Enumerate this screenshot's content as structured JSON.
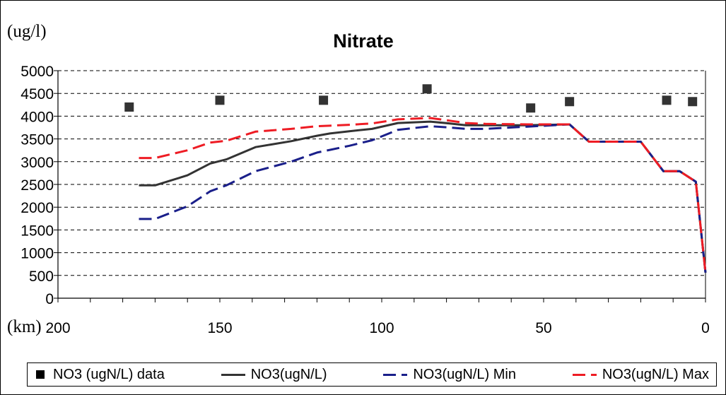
{
  "chart_data": {
    "type": "line",
    "title": "Nitrate",
    "ylabel": "(ug/l)",
    "xlabel": "(km)",
    "xlim": [
      200,
      0
    ],
    "ylim": [
      0,
      5000
    ],
    "x_ticks": [
      200,
      150,
      100,
      50,
      0
    ],
    "y_ticks": [
      0,
      500,
      1000,
      1500,
      2000,
      2500,
      3000,
      3500,
      4000,
      4500,
      5000
    ],
    "grid": "horizontal dashed",
    "legend_position": "bottom",
    "series": [
      {
        "name": "NO3 (ugN/L) data",
        "kind": "scatter",
        "color": "#333333",
        "x": [
          178,
          150,
          118,
          86,
          54,
          42,
          12,
          4
        ],
        "y": [
          4200,
          4350,
          4350,
          4600,
          4180,
          4320,
          4350,
          4320
        ]
      },
      {
        "name": "NO3(ugN/L)",
        "kind": "line",
        "color": "#333333",
        "dash": "solid",
        "x": [
          175,
          170,
          160,
          153,
          148,
          139,
          128,
          120,
          116,
          110,
          103,
          95,
          85,
          79,
          74,
          68,
          55,
          42,
          36,
          30,
          20,
          13,
          8,
          3,
          0
        ],
        "y": [
          2480,
          2480,
          2700,
          2960,
          3050,
          3320,
          3450,
          3570,
          3620,
          3670,
          3720,
          3850,
          3880,
          3840,
          3800,
          3800,
          3800,
          3820,
          3440,
          3440,
          3440,
          2790,
          2790,
          2560,
          560
        ]
      },
      {
        "name": "NO3(ugN/L) Min",
        "kind": "line",
        "color": "#1a1f8a",
        "dash": "dashed",
        "x": [
          175,
          170,
          160,
          153,
          148,
          139,
          128,
          120,
          116,
          110,
          103,
          95,
          85,
          79,
          74,
          68,
          55,
          42,
          36,
          30,
          20,
          13,
          8,
          3,
          0
        ],
        "y": [
          1740,
          1740,
          2020,
          2350,
          2480,
          2790,
          3000,
          3200,
          3260,
          3350,
          3470,
          3700,
          3780,
          3750,
          3720,
          3720,
          3770,
          3820,
          3440,
          3440,
          3440,
          2790,
          2790,
          2560,
          560
        ]
      },
      {
        "name": "NO3(ugN/L) Max",
        "kind": "line",
        "color": "#ee1c24",
        "dash": "dashed",
        "x": [
          175,
          170,
          160,
          153,
          148,
          139,
          128,
          120,
          116,
          110,
          103,
          95,
          85,
          79,
          74,
          68,
          55,
          42,
          36,
          30,
          20,
          13,
          8,
          3,
          0
        ],
        "y": [
          3080,
          3080,
          3250,
          3420,
          3460,
          3660,
          3720,
          3780,
          3790,
          3810,
          3840,
          3930,
          3960,
          3900,
          3850,
          3830,
          3820,
          3820,
          3440,
          3440,
          3440,
          2790,
          2790,
          2560,
          560
        ]
      }
    ]
  }
}
